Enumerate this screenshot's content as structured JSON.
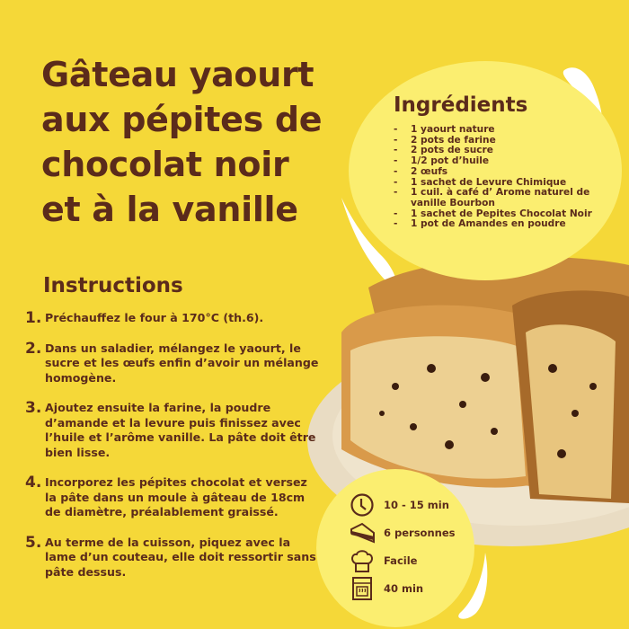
{
  "title_lines": [
    "Gâteau yaourt",
    "aux pépites de",
    "chocolat noir",
    "et à la vanille"
  ],
  "instructions": {
    "heading": "Instructions",
    "steps": [
      {
        "num": "1.",
        "text": "Préchauffez le four à 170°C (th.6)."
      },
      {
        "num": "2.",
        "text": "Dans un saladier, mélangez le yaourt, le sucre et les œufs enfin d’avoir un mélange homogène."
      },
      {
        "num": "3.",
        "text": "Ajoutez ensuite la farine, la poudre d’amande et la levure puis finissez avec l’huile et l’arôme vanille. La pâte doit être bien lisse."
      },
      {
        "num": "4.",
        "text": "Incorporez les pépites chocolat et versez la pâte dans un moule à gâteau de 18cm de diamètre, préalablement graissé."
      },
      {
        "num": "5.",
        "text": "Au terme de la cuisson, piquez avec la lame d’un couteau, elle doit ressortir sans pâte dessus."
      }
    ]
  },
  "ingredients": {
    "heading": "Ingrédients",
    "bullet": "-",
    "items": [
      "1 yaourt nature",
      "2 pots de farine",
      "2 pots de sucre",
      "1/2 pot d’huile",
      "2 œufs",
      "1 sachet de Levure Chimique",
      "1 cuil. à café d’ Arome naturel de vanille Bourbon",
      "1 sachet de Pepites Chocolat Noir",
      "1 pot de Amandes en poudre"
    ]
  },
  "info": [
    {
      "icon": "clock-icon",
      "text": "10 - 15 min"
    },
    {
      "icon": "cake-slice-icon",
      "text": "6 personnes"
    },
    {
      "icon": "chef-hat-icon",
      "text": "Facile"
    },
    {
      "icon": "oven-icon",
      "text": "40 min"
    }
  ],
  "colors": {
    "background": "#f5d838",
    "text": "#5b2b1b",
    "circle": "#fbee70"
  }
}
